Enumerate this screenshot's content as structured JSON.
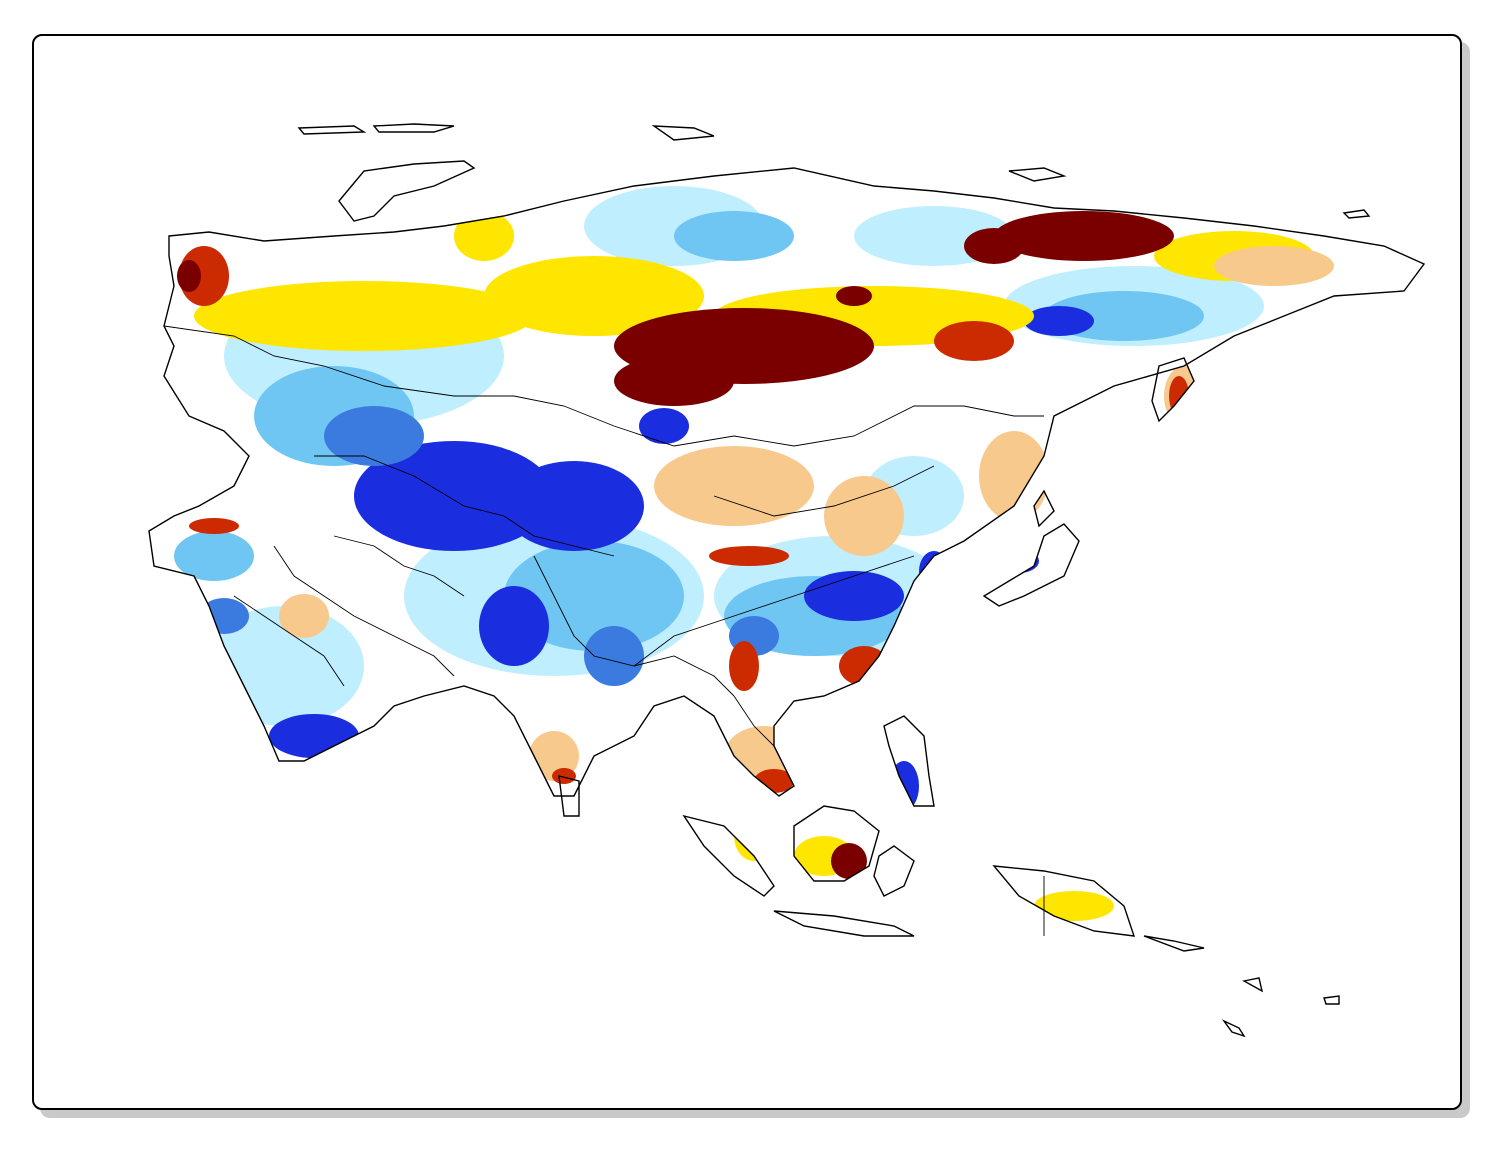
{
  "map": {
    "palette": {
      "dark_red": "#7a0000",
      "red": "#cc2a00",
      "orange": "#f5a45a",
      "tan": "#f8c98c",
      "yellow": "#ffe600",
      "white": "#ffffff",
      "light_blue": "#bfeeff",
      "sky_blue": "#6fc6f2",
      "mid_blue": "#3b7be0",
      "blue": "#1a2ee0",
      "border": "#000000"
    }
  }
}
